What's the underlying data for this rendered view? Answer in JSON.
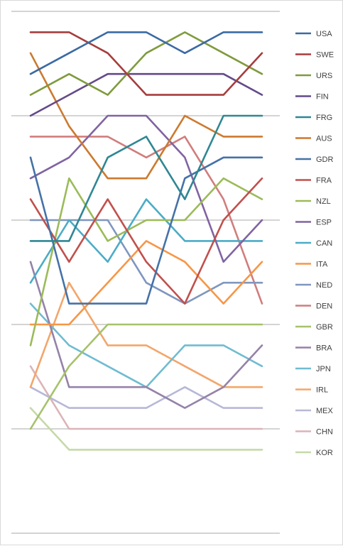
{
  "chart_data": {
    "type": "line",
    "title": "",
    "xlabel": "",
    "ylabel": "",
    "grid": true,
    "legend_position": "right",
    "ylim": [
      0,
      25
    ],
    "x": [
      1,
      2,
      3,
      4,
      5,
      6,
      7
    ],
    "series": [
      {
        "name": "USA",
        "color": "#3b6aa3",
        "values": [
          3.0,
          2.0,
          1.0,
          1.0,
          2.0,
          1.0,
          1.0
        ]
      },
      {
        "name": "SWE",
        "color": "#a63d3d",
        "values": [
          1.0,
          1.0,
          2.0,
          4.0,
          4.0,
          4.0,
          2.0
        ]
      },
      {
        "name": "URS",
        "color": "#7f9b3e",
        "values": [
          4.0,
          3.0,
          4.0,
          2.0,
          1.0,
          2.0,
          3.0
        ]
      },
      {
        "name": "FIN",
        "color": "#644a8a",
        "values": [
          5.0,
          4.0,
          3.0,
          3.0,
          3.0,
          3.0,
          4.0
        ]
      },
      {
        "name": "FRG",
        "color": "#2f8793",
        "values": [
          11.0,
          11.0,
          7.0,
          6.0,
          9.0,
          5.0,
          5.0
        ]
      },
      {
        "name": "AUS",
        "color": "#cc7a2f",
        "values": [
          2.0,
          5.5,
          8.0,
          8.0,
          5.0,
          6.0,
          6.0
        ]
      },
      {
        "name": "GDR",
        "color": "#4572a7",
        "values": [
          7.0,
          14.0,
          14.0,
          14.0,
          8.0,
          7.0,
          7.0
        ]
      },
      {
        "name": "FRA",
        "color": "#c0504d",
        "values": [
          9.0,
          12.0,
          9.0,
          12.0,
          14.0,
          10.0,
          8.0
        ]
      },
      {
        "name": "NZL",
        "color": "#9bbb59",
        "values": [
          16.0,
          8.0,
          11.0,
          10.0,
          10.0,
          8.0,
          9.0
        ]
      },
      {
        "name": "ESP",
        "color": "#8064a2",
        "values": [
          8.0,
          7.0,
          5.0,
          5.0,
          7.0,
          12.0,
          10.0
        ]
      },
      {
        "name": "CAN",
        "color": "#4bacc6",
        "values": [
          13.0,
          10.0,
          12.0,
          9.0,
          11.0,
          11.0,
          11.0
        ]
      },
      {
        "name": "ITA",
        "color": "#f79646",
        "values": [
          15.0,
          15.0,
          13.0,
          11.0,
          12.0,
          14.0,
          12.0
        ]
      },
      {
        "name": "NED",
        "color": "#7f96bf",
        "values": [
          10.0,
          10.0,
          10.0,
          13.0,
          14.0,
          13.0,
          13.0
        ]
      },
      {
        "name": "DEN",
        "color": "#d17d7d",
        "values": [
          6.0,
          6.0,
          6.0,
          7.0,
          6.0,
          9.0,
          14.0
        ]
      },
      {
        "name": "GBR",
        "color": "#a6c26b",
        "values": [
          20.0,
          17.0,
          15.0,
          15.0,
          15.0,
          15.0,
          15.0
        ]
      },
      {
        "name": "BRA",
        "color": "#9582a8",
        "values": [
          12.0,
          18.0,
          18.0,
          18.0,
          19.0,
          18.0,
          16.0
        ]
      },
      {
        "name": "JPN",
        "color": "#6fbcd1",
        "values": [
          14.0,
          16.0,
          17.0,
          18.0,
          16.0,
          16.0,
          17.0
        ]
      },
      {
        "name": "IRL",
        "color": "#f2a66b",
        "values": [
          18.0,
          13.0,
          16.0,
          16.0,
          17.0,
          18.0,
          18.0
        ]
      },
      {
        "name": "MEX",
        "color": "#b7b8d6",
        "values": [
          18.0,
          19.0,
          19.0,
          19.0,
          18.0,
          19.0,
          19.0
        ]
      },
      {
        "name": "CHN",
        "color": "#dbb4b8",
        "values": [
          17.0,
          20.0,
          20.0,
          20.0,
          20.0,
          20.0,
          20.0
        ]
      },
      {
        "name": "KOR",
        "color": "#c6d9a8",
        "values": [
          19.0,
          21.0,
          21.0,
          21.0,
          21.0,
          21.0,
          21.0
        ]
      }
    ]
  }
}
